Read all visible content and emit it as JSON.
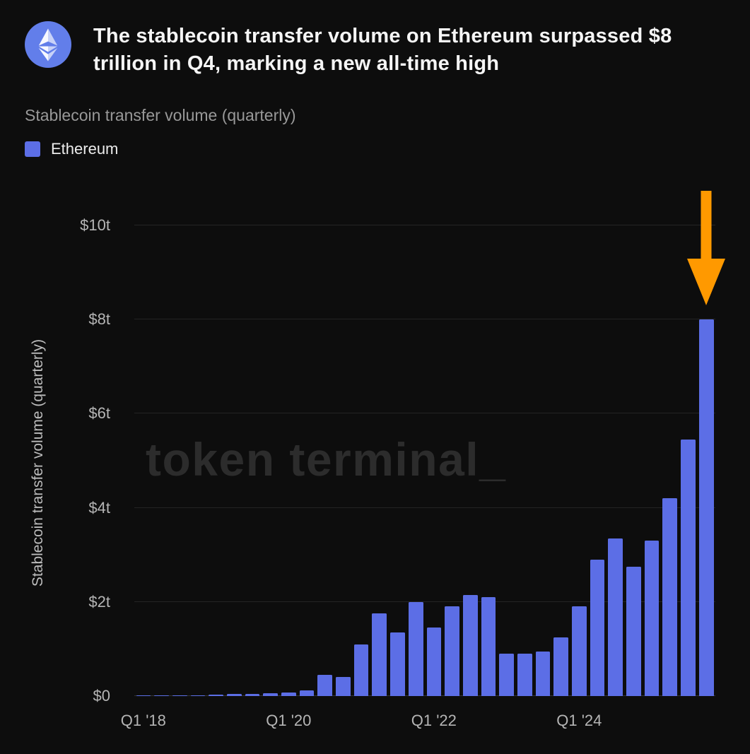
{
  "colors": {
    "background": "#0d0d0d",
    "bar": "#5c6ee6",
    "arrow": "#ff9900",
    "logo_circle": "#627eea"
  },
  "header": {
    "title": "The stablecoin transfer volume on Ethereum surpassed $8 trillion in Q4, marking a new all-time high"
  },
  "chart_header": {
    "subtitle": "Stablecoin transfer volume (quarterly)",
    "legend": [
      {
        "label": "Ethereum",
        "color": "#5c6ee6"
      }
    ]
  },
  "watermark": "token terminal_",
  "chart_data": {
    "type": "bar",
    "title": "Stablecoin transfer volume (quarterly)",
    "xlabel": "",
    "ylabel": "Stablecoin transfer volume (quarterly)",
    "ylim": [
      0,
      10
    ],
    "grid": true,
    "legend_position": "top-left",
    "unit": "trillion USD",
    "y_ticks": [
      {
        "value": 0,
        "label": "$0"
      },
      {
        "value": 2,
        "label": "$2t"
      },
      {
        "value": 4,
        "label": "$4t"
      },
      {
        "value": 6,
        "label": "$6t"
      },
      {
        "value": 8,
        "label": "$8t"
      },
      {
        "value": 10,
        "label": "$10t"
      }
    ],
    "x_ticks": [
      {
        "index": 0,
        "label": "Q1 '18"
      },
      {
        "index": 8,
        "label": "Q1 '20"
      },
      {
        "index": 16,
        "label": "Q1 '22"
      },
      {
        "index": 24,
        "label": "Q1 '24"
      }
    ],
    "categories": [
      "Q1 '18",
      "Q2 '18",
      "Q3 '18",
      "Q4 '18",
      "Q1 '19",
      "Q2 '19",
      "Q3 '19",
      "Q4 '19",
      "Q1 '20",
      "Q2 '20",
      "Q3 '20",
      "Q4 '20",
      "Q1 '21",
      "Q2 '21",
      "Q3 '21",
      "Q4 '21",
      "Q1 '22",
      "Q2 '22",
      "Q3 '22",
      "Q4 '22",
      "Q1 '23",
      "Q2 '23",
      "Q3 '23",
      "Q4 '23",
      "Q1 '24",
      "Q2 '24",
      "Q3 '24",
      "Q4 '24",
      "Q1 '25",
      "Q2 '25",
      "Q3 '25",
      "Q4 '25"
    ],
    "series": [
      {
        "name": "Ethereum",
        "color": "#5c6ee6",
        "values": [
          0.01,
          0.01,
          0.02,
          0.02,
          0.03,
          0.04,
          0.05,
          0.06,
          0.08,
          0.12,
          0.45,
          0.4,
          1.1,
          1.75,
          1.35,
          2.0,
          1.45,
          1.9,
          2.15,
          2.1,
          0.9,
          0.9,
          0.95,
          1.25,
          1.9,
          2.9,
          3.35,
          2.75,
          3.3,
          4.2,
          5.45,
          8.0
        ]
      }
    ],
    "annotation": {
      "type": "arrow-down",
      "color": "#ff9900",
      "target_index": 31,
      "meaning": "highlights the record Q4 bar at $8t"
    }
  }
}
